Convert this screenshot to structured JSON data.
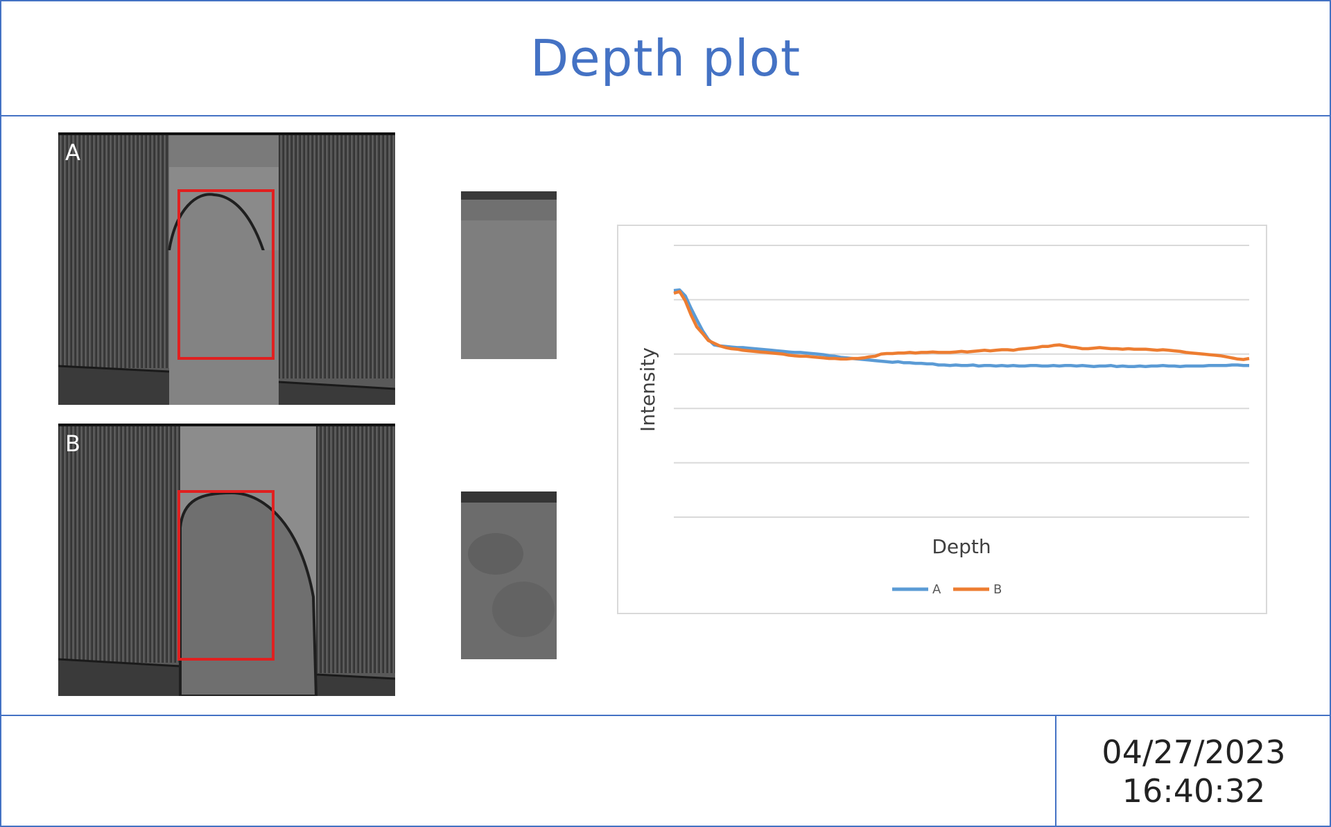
{
  "title": "Depth plot",
  "footer": {
    "date": "04/27/2023",
    "time": "16:40:32"
  },
  "scans": [
    {
      "label": "A"
    },
    {
      "label": "B"
    }
  ],
  "colors": {
    "frame": "#4472c4",
    "roi": "#e02020",
    "series_a": "#5b9bd5",
    "series_b": "#ed7d31"
  },
  "chart_data": {
    "type": "line",
    "xlabel": "Depth",
    "ylabel": "Intensity",
    "ylim": [
      0,
      5
    ],
    "grid": true,
    "legend": "bottom",
    "x": [
      0,
      1,
      2,
      3,
      4,
      5,
      6,
      7,
      8,
      9,
      10,
      11,
      12,
      13,
      14,
      15,
      16,
      17,
      18,
      19,
      20,
      21,
      22,
      23,
      24,
      25,
      26,
      27,
      28,
      29,
      30,
      31,
      32,
      33,
      34,
      35,
      36,
      37,
      38,
      39,
      40,
      41,
      42,
      43,
      44,
      45,
      46,
      47,
      48,
      49,
      50,
      51,
      52,
      53,
      54,
      55,
      56,
      57,
      58,
      59,
      60,
      61,
      62,
      63,
      64,
      65,
      66,
      67,
      68,
      69,
      70,
      71,
      72,
      73,
      74,
      75,
      76,
      77,
      78,
      79,
      80,
      81,
      82,
      83,
      84,
      85,
      86,
      87,
      88,
      89,
      90,
      91,
      92,
      93,
      94,
      95,
      96,
      97,
      98,
      99,
      100
    ],
    "series": [
      {
        "name": "A",
        "color": "#5b9bd5",
        "values": [
          4.17,
          4.18,
          4.07,
          3.84,
          3.63,
          3.43,
          3.27,
          3.17,
          3.15,
          3.14,
          3.13,
          3.12,
          3.12,
          3.11,
          3.1,
          3.09,
          3.08,
          3.07,
          3.06,
          3.05,
          3.04,
          3.03,
          3.03,
          3.02,
          3.01,
          3.0,
          2.99,
          2.97,
          2.96,
          2.94,
          2.93,
          2.92,
          2.91,
          2.9,
          2.89,
          2.88,
          2.87,
          2.86,
          2.85,
          2.86,
          2.84,
          2.84,
          2.83,
          2.83,
          2.82,
          2.82,
          2.8,
          2.8,
          2.79,
          2.8,
          2.79,
          2.79,
          2.8,
          2.78,
          2.79,
          2.79,
          2.78,
          2.79,
          2.78,
          2.79,
          2.78,
          2.78,
          2.79,
          2.79,
          2.78,
          2.78,
          2.79,
          2.78,
          2.79,
          2.79,
          2.78,
          2.79,
          2.78,
          2.77,
          2.78,
          2.78,
          2.79,
          2.77,
          2.78,
          2.77,
          2.77,
          2.78,
          2.77,
          2.78,
          2.78,
          2.79,
          2.78,
          2.78,
          2.77,
          2.78,
          2.78,
          2.78,
          2.78,
          2.79,
          2.79,
          2.79,
          2.79,
          2.8,
          2.8,
          2.79,
          2.79
        ]
      },
      {
        "name": "B",
        "color": "#ed7d31",
        "values": [
          4.12,
          4.15,
          3.98,
          3.72,
          3.5,
          3.38,
          3.25,
          3.2,
          3.15,
          3.12,
          3.1,
          3.09,
          3.07,
          3.06,
          3.05,
          3.04,
          3.03,
          3.02,
          3.01,
          3.0,
          2.98,
          2.97,
          2.96,
          2.96,
          2.95,
          2.94,
          2.93,
          2.92,
          2.92,
          2.91,
          2.91,
          2.92,
          2.92,
          2.93,
          2.95,
          2.96,
          3.0,
          3.01,
          3.01,
          3.02,
          3.02,
          3.03,
          3.02,
          3.03,
          3.03,
          3.04,
          3.03,
          3.03,
          3.03,
          3.04,
          3.05,
          3.04,
          3.05,
          3.06,
          3.07,
          3.06,
          3.07,
          3.08,
          3.08,
          3.07,
          3.09,
          3.1,
          3.11,
          3.12,
          3.14,
          3.14,
          3.16,
          3.17,
          3.15,
          3.13,
          3.12,
          3.1,
          3.1,
          3.11,
          3.12,
          3.11,
          3.1,
          3.1,
          3.09,
          3.1,
          3.09,
          3.09,
          3.09,
          3.08,
          3.07,
          3.08,
          3.07,
          3.06,
          3.05,
          3.03,
          3.02,
          3.01,
          3.0,
          2.99,
          2.98,
          2.97,
          2.95,
          2.93,
          2.91,
          2.9,
          2.92
        ]
      }
    ]
  }
}
